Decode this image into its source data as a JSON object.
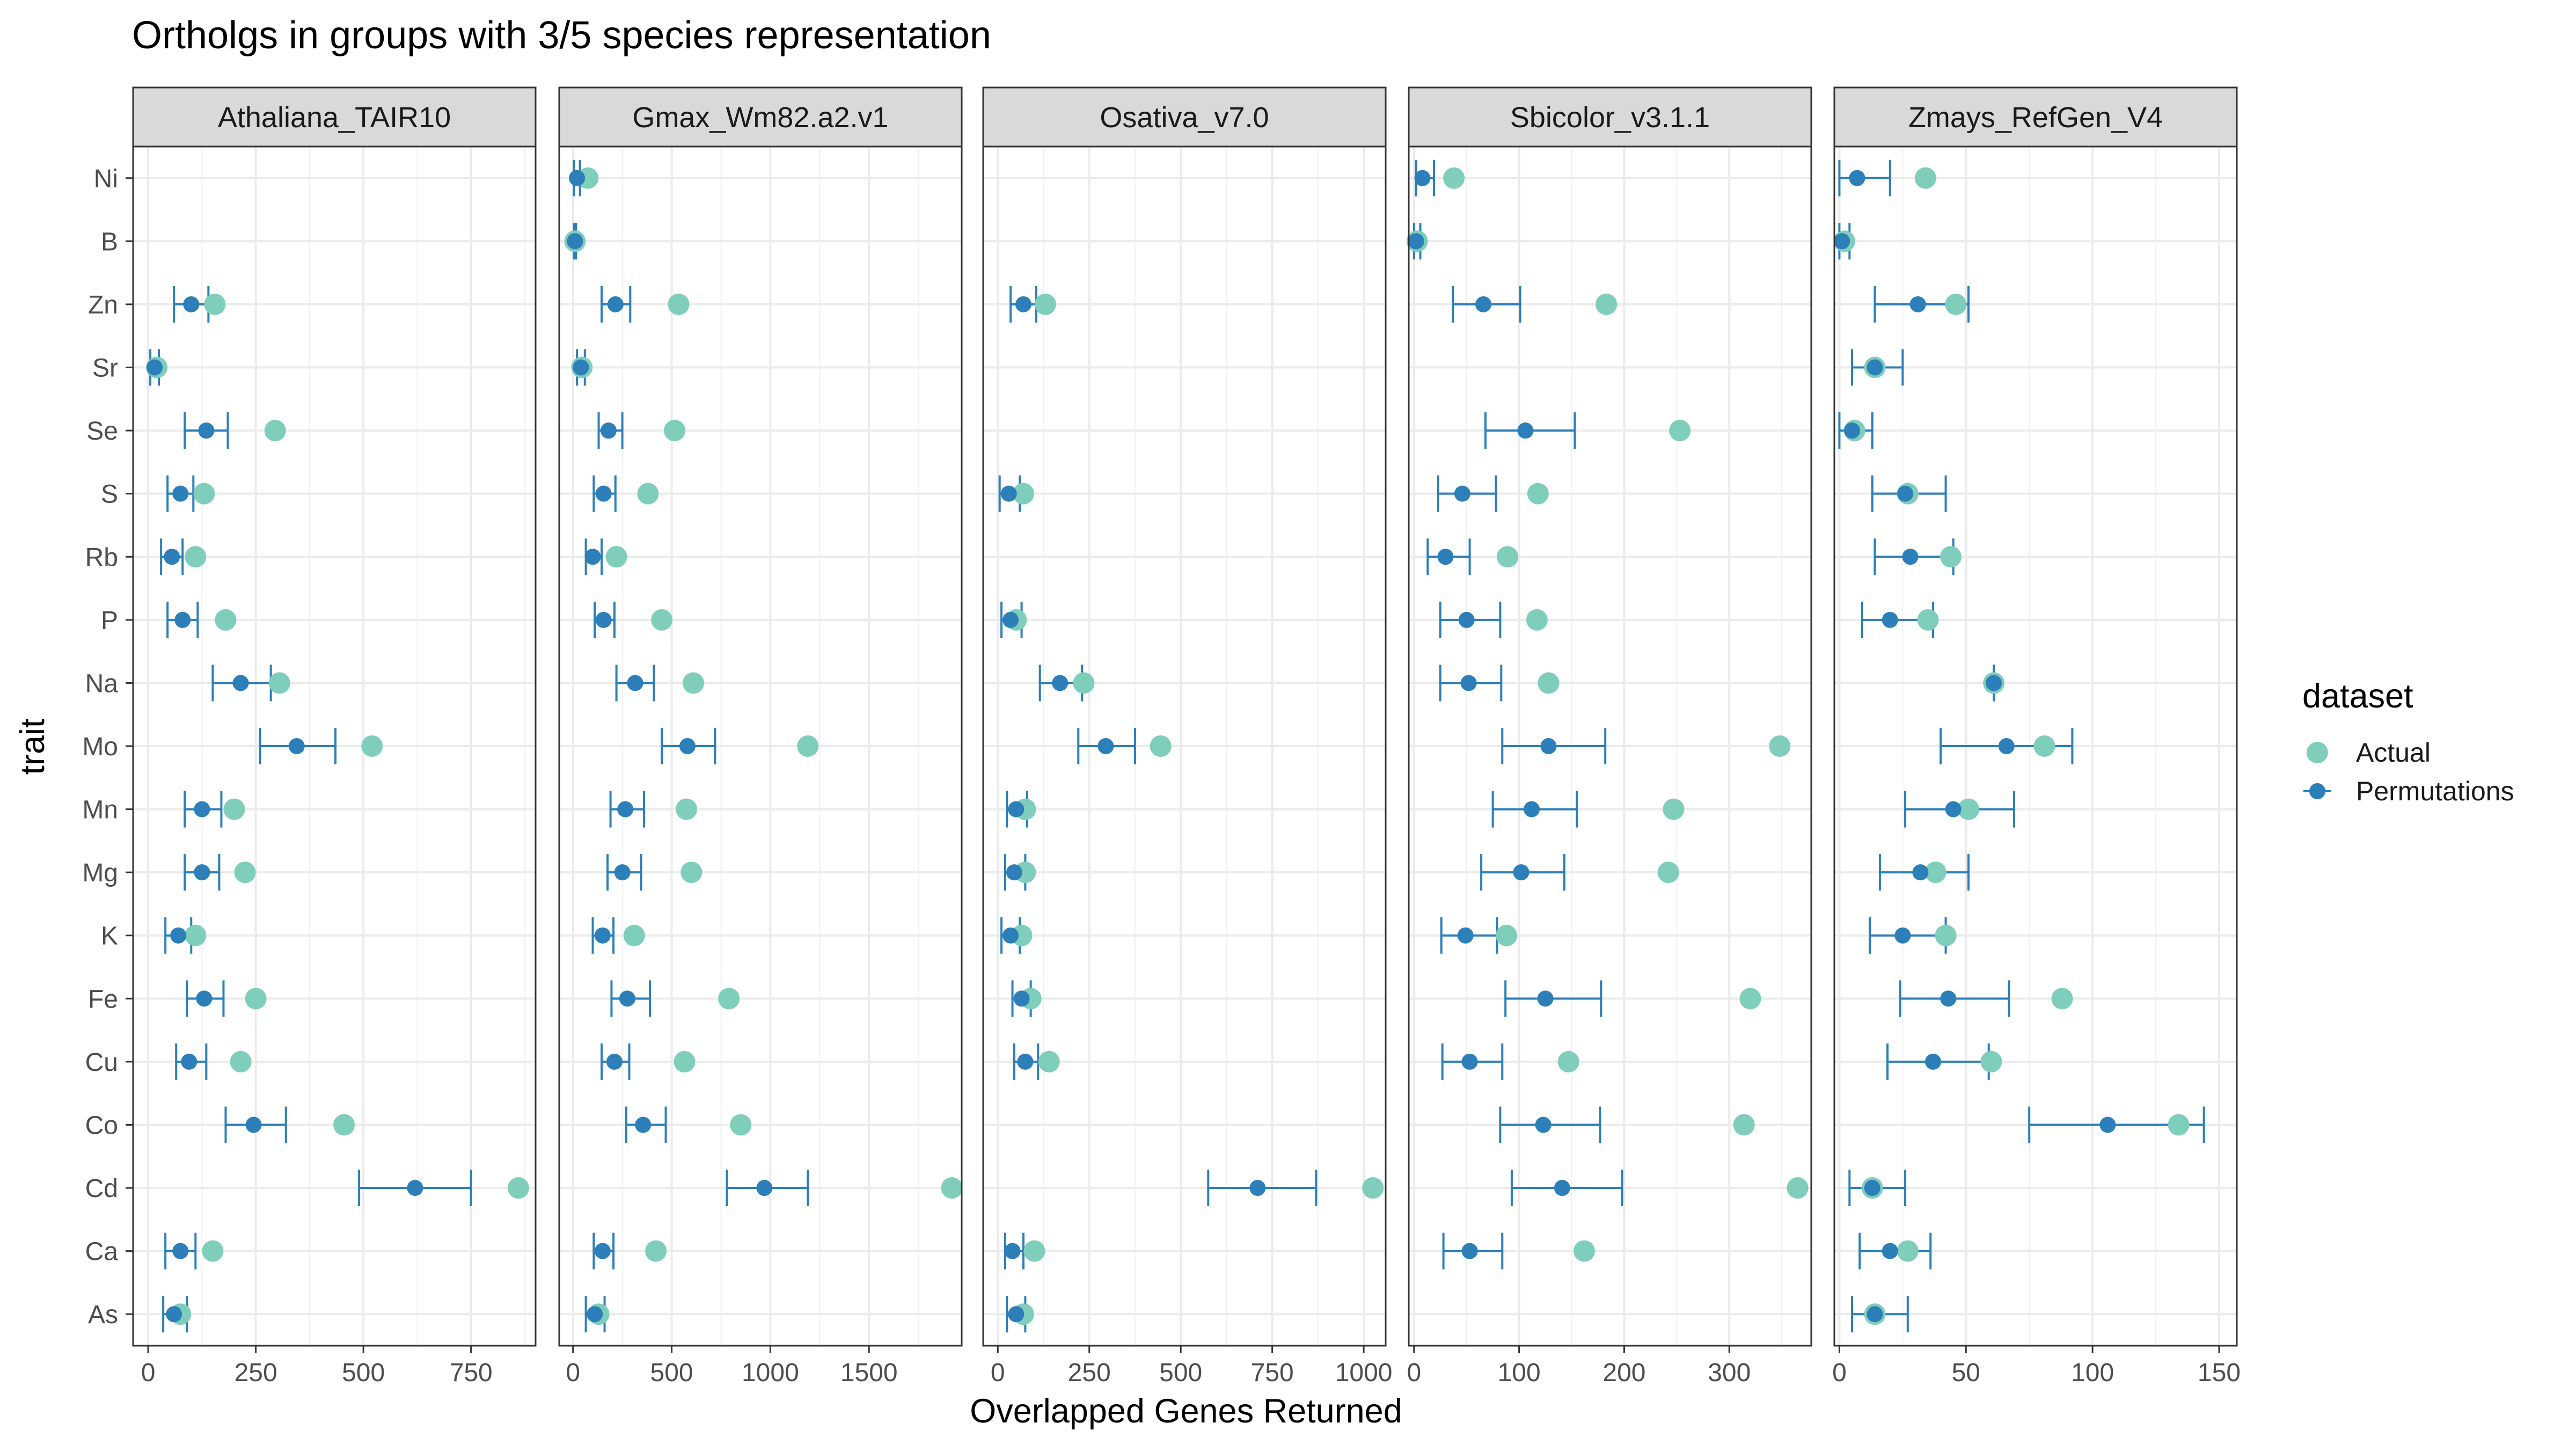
{
  "chart_data": {
    "type": "scatter",
    "title": "Ortholgs in groups with 3/5 species representation",
    "xlabel": "Overlapped Genes Returned",
    "ylabel": "trait",
    "legend": {
      "title": "dataset",
      "placement": "right",
      "entries": [
        {
          "name": "Actual",
          "color": "#7fcdbb"
        },
        {
          "name": "Permutations",
          "color": "#2c7fb8"
        }
      ]
    },
    "grid": true,
    "traits": [
      "Ni",
      "B",
      "Zn",
      "Sr",
      "Se",
      "S",
      "Rb",
      "P",
      "Na",
      "Mo",
      "Mn",
      "Mg",
      "K",
      "Fe",
      "Cu",
      "Co",
      "Cd",
      "Ca",
      "As"
    ],
    "panels": [
      {
        "name": "Athaliana_TAIR10",
        "xlim": [
          -35,
          900
        ],
        "xticks": [
          0,
          250,
          500,
          750
        ],
        "actual": [
          null,
          null,
          155,
          20,
          295,
          130,
          110,
          180,
          305,
          520,
          200,
          225,
          110,
          250,
          215,
          455,
          860,
          150,
          75
        ],
        "permutation_mean": [
          null,
          null,
          100,
          15,
          135,
          75,
          55,
          80,
          215,
          345,
          125,
          125,
          70,
          130,
          95,
          245,
          620,
          75,
          60
        ],
        "permutation_low": [
          null,
          null,
          60,
          5,
          85,
          45,
          30,
          45,
          150,
          260,
          85,
          85,
          40,
          90,
          65,
          180,
          490,
          40,
          35
        ],
        "permutation_high": [
          null,
          null,
          140,
          25,
          185,
          105,
          80,
          115,
          285,
          435,
          170,
          165,
          100,
          175,
          135,
          320,
          750,
          110,
          90
        ]
      },
      {
        "name": "Gmax_Wm82.a2.v1",
        "xlim": [
          -70,
          1970
        ],
        "xticks": [
          0,
          500,
          1000,
          1500
        ],
        "actual": [
          75,
          10,
          535,
          45,
          515,
          380,
          220,
          450,
          610,
          1190,
          575,
          600,
          310,
          790,
          565,
          850,
          1920,
          420,
          130
        ],
        "permutation_mean": [
          20,
          10,
          215,
          40,
          180,
          155,
          100,
          155,
          315,
          580,
          265,
          250,
          150,
          275,
          210,
          355,
          970,
          150,
          110
        ],
        "permutation_low": [
          5,
          5,
          145,
          20,
          130,
          105,
          65,
          110,
          220,
          450,
          190,
          175,
          100,
          195,
          145,
          270,
          780,
          105,
          65
        ],
        "permutation_high": [
          35,
          15,
          290,
          60,
          250,
          215,
          145,
          210,
          410,
          720,
          360,
          345,
          205,
          390,
          285,
          470,
          1190,
          205,
          160
        ]
      },
      {
        "name": "Osativa_v7.0",
        "xlim": [
          -40,
          1060
        ],
        "xticks": [
          0,
          250,
          500,
          750,
          1000
        ],
        "actual": [
          null,
          null,
          130,
          null,
          null,
          70,
          null,
          50,
          235,
          445,
          75,
          75,
          65,
          90,
          140,
          null,
          1025,
          100,
          70
        ],
        "permutation_mean": [
          null,
          null,
          70,
          null,
          null,
          30,
          null,
          35,
          170,
          295,
          50,
          45,
          35,
          65,
          75,
          null,
          710,
          40,
          50
        ],
        "permutation_low": [
          null,
          null,
          35,
          null,
          null,
          5,
          null,
          10,
          115,
          220,
          25,
          20,
          10,
          40,
          45,
          null,
          575,
          20,
          25
        ],
        "permutation_high": [
          null,
          null,
          105,
          null,
          null,
          60,
          null,
          65,
          230,
          375,
          80,
          75,
          60,
          90,
          110,
          null,
          870,
          70,
          75
        ]
      },
      {
        "name": "Sbicolor_v3.1.1",
        "xlim": [
          -5,
          378
        ],
        "xticks": [
          0,
          100,
          200,
          300
        ],
        "actual": [
          38,
          3,
          183,
          null,
          253,
          118,
          89,
          117,
          128,
          348,
          247,
          242,
          88,
          320,
          147,
          314,
          365,
          162,
          null
        ],
        "permutation_mean": [
          8,
          2,
          66,
          null,
          106,
          46,
          30,
          50,
          52,
          128,
          112,
          102,
          49,
          125,
          53,
          123,
          141,
          53,
          null
        ],
        "permutation_low": [
          2,
          0,
          37,
          null,
          68,
          23,
          13,
          25,
          25,
          84,
          75,
          64,
          26,
          87,
          27,
          82,
          93,
          28,
          null
        ],
        "permutation_high": [
          19,
          6,
          101,
          null,
          153,
          78,
          53,
          82,
          83,
          182,
          155,
          143,
          79,
          178,
          84,
          177,
          198,
          84,
          null
        ]
      },
      {
        "name": "Zmays_RefGen_V4",
        "xlim": [
          -2,
          157
        ],
        "xticks": [
          0,
          50,
          100,
          150
        ],
        "actual": [
          34,
          2,
          46,
          14,
          6,
          27,
          44,
          35,
          61,
          81,
          51,
          38,
          42,
          88,
          60,
          134,
          13,
          27,
          14
        ],
        "permutation_mean": [
          7,
          1,
          31,
          14,
          5,
          26,
          28,
          20,
          61,
          66,
          45,
          32,
          25,
          43,
          37,
          106,
          13,
          20,
          14
        ],
        "permutation_low": [
          0,
          0,
          14,
          5,
          0,
          13,
          14,
          9,
          61,
          40,
          26,
          16,
          12,
          24,
          19,
          75,
          4,
          8,
          5
        ],
        "permutation_high": [
          20,
          4,
          51,
          25,
          13,
          42,
          45,
          37,
          61,
          92,
          69,
          51,
          42,
          67,
          59,
          144,
          26,
          36,
          27
        ]
      }
    ]
  }
}
